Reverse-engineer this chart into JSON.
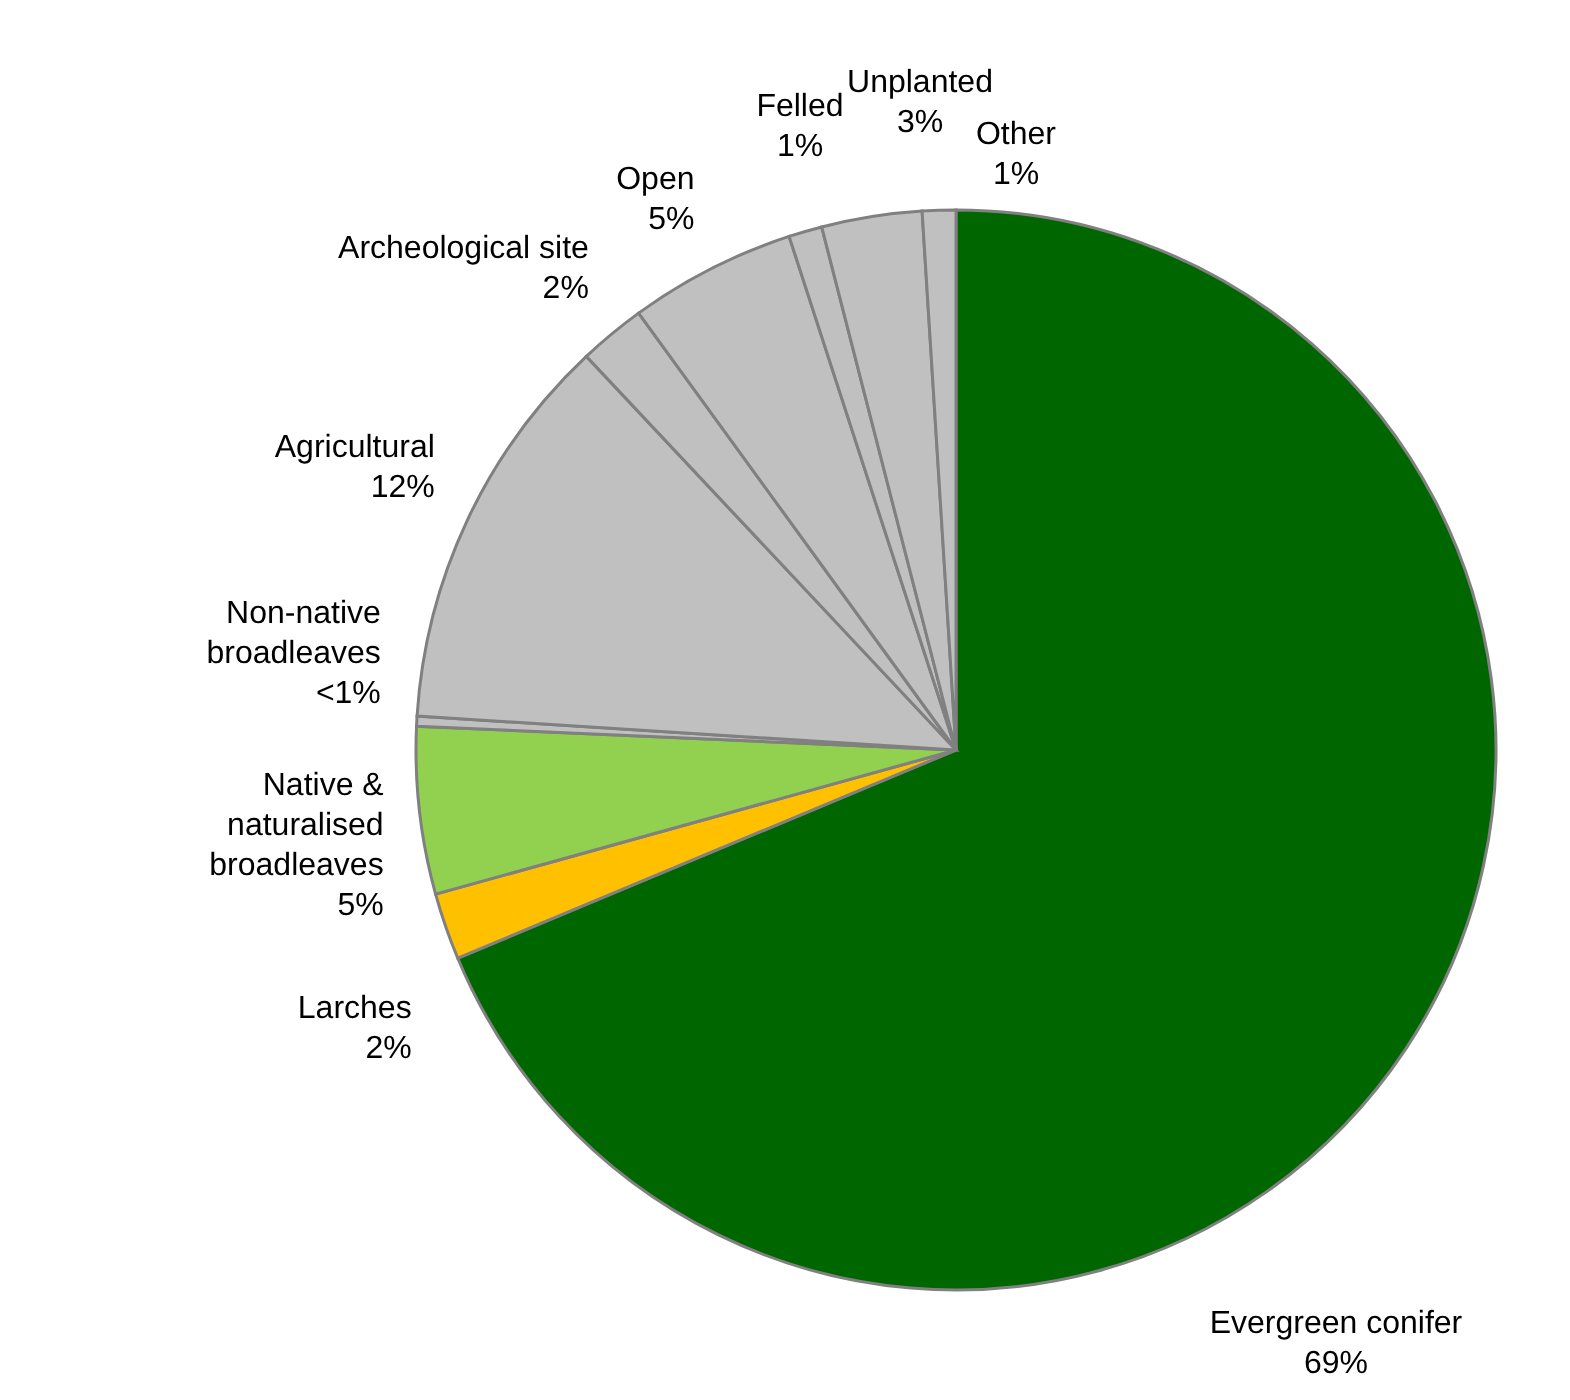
{
  "chart_data": {
    "type": "pie",
    "categories": [
      "Evergreen conifer",
      "Larches",
      "Native & naturalised broadleaves",
      "Non-native broadleaves",
      "Agricultural",
      "Archeological site",
      "Open",
      "Felled",
      "Unplanted",
      "Other"
    ],
    "values": [
      68.7,
      2,
      5,
      0.3,
      12,
      2,
      5,
      1,
      3,
      1
    ],
    "value_labels": [
      "69%",
      "2%",
      "5%",
      "<1%",
      "12%",
      "2%",
      "5%",
      "1%",
      "3%",
      "1%"
    ],
    "colors": [
      "#006600",
      "#ffc000",
      "#92d050",
      "#c0c0c0",
      "#c0c0c0",
      "#c0c0c0",
      "#c0c0c0",
      "#c0c0c0",
      "#c0c0c0",
      "#c0c0c0"
    ],
    "legend": false
  }
}
